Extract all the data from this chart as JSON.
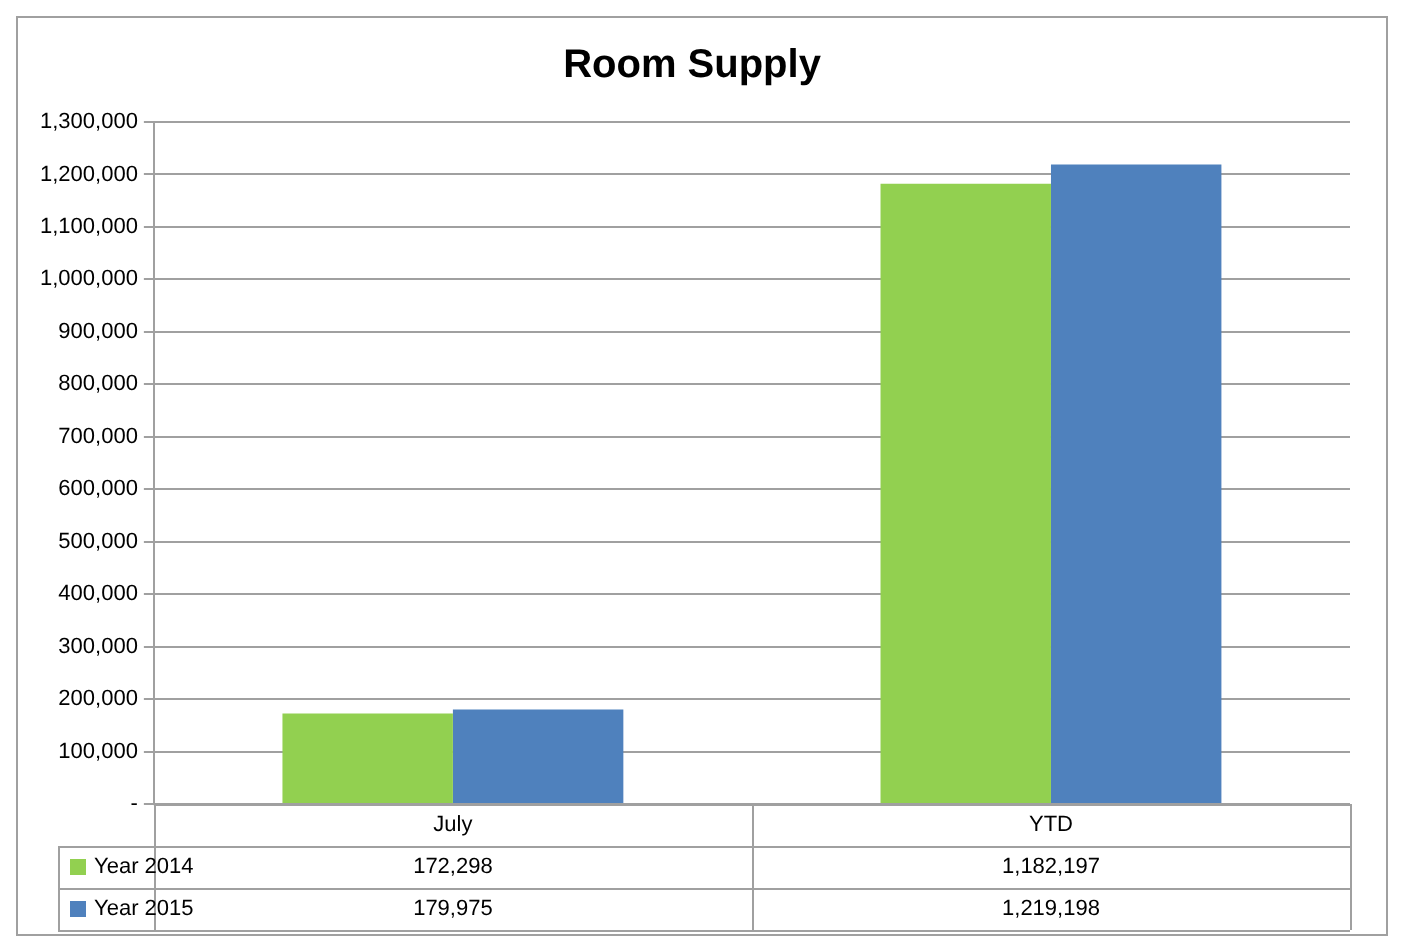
{
  "chart_data": {
    "type": "bar",
    "title": "Room Supply",
    "categories": [
      "July",
      "YTD"
    ],
    "series": [
      {
        "name": "Year 2014",
        "color": "#92d050",
        "values": [
          172298,
          1182197
        ],
        "value_labels": [
          "172,298",
          "1,182,197"
        ]
      },
      {
        "name": "Year 2015",
        "color": "#4f81bd",
        "values": [
          179975,
          1219198
        ],
        "value_labels": [
          "179,975",
          "1,219,198"
        ]
      }
    ],
    "ylim": [
      0,
      1300000
    ],
    "yticks": [
      {
        "value": 0,
        "label": "-"
      },
      {
        "value": 100000,
        "label": "100,000"
      },
      {
        "value": 200000,
        "label": "200,000"
      },
      {
        "value": 300000,
        "label": "300,000"
      },
      {
        "value": 400000,
        "label": "400,000"
      },
      {
        "value": 500000,
        "label": "500,000"
      },
      {
        "value": 600000,
        "label": "600,000"
      },
      {
        "value": 700000,
        "label": "700,000"
      },
      {
        "value": 800000,
        "label": "800,000"
      },
      {
        "value": 900000,
        "label": "900,000"
      },
      {
        "value": 1000000,
        "label": "1,000,000"
      },
      {
        "value": 1100000,
        "label": "1,100,000"
      },
      {
        "value": 1200000,
        "label": "1,200,000"
      },
      {
        "value": 1300000,
        "label": "1,300,000"
      }
    ],
    "grid": "y",
    "legend": "bottom"
  }
}
